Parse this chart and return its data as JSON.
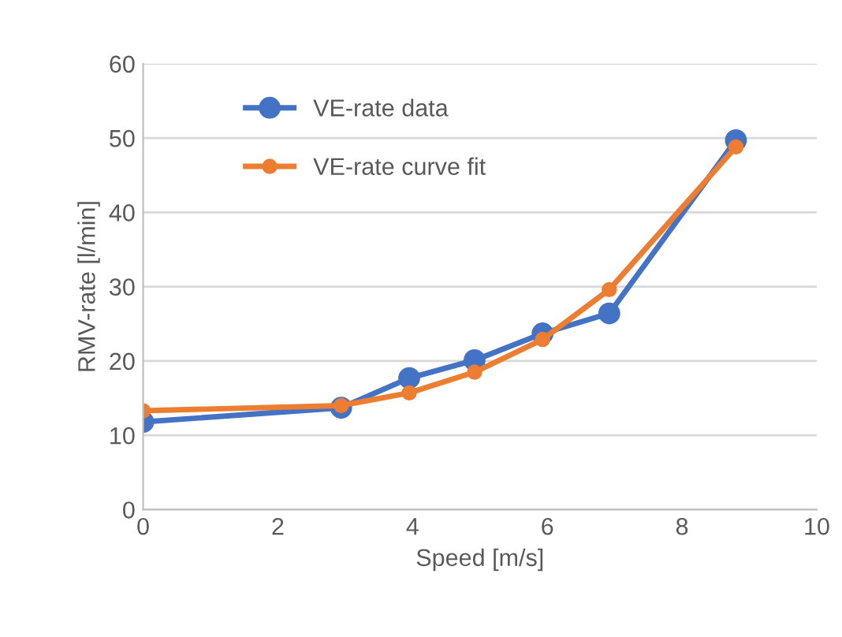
{
  "chart_data": {
    "type": "line",
    "xlabel": "Speed [m/s]",
    "ylabel": "RMV-rate [l/min]",
    "series": [
      {
        "name": "VE-rate data",
        "color": "#4472c4",
        "x": [
          0,
          2.94,
          3.95,
          4.92,
          5.93,
          6.92,
          8.8
        ],
        "values": [
          11.8,
          13.7,
          17.7,
          20.1,
          23.7,
          26.4,
          49.7
        ]
      },
      {
        "name": "VE-rate curve fit",
        "color": "#ed7d31",
        "x": [
          0,
          2.94,
          3.95,
          4.92,
          5.93,
          6.92,
          8.8
        ],
        "values": [
          13.3,
          14.0,
          15.7,
          18.5,
          22.9,
          29.6,
          48.8
        ]
      }
    ],
    "xlim": [
      0,
      10
    ],
    "xticks": [
      0,
      2,
      4,
      6,
      8,
      10
    ],
    "ylim": [
      0,
      60
    ],
    "yticks": [
      0,
      10,
      20,
      30,
      40,
      50,
      60
    ],
    "grid": "y",
    "legend": "top left",
    "marker": "circle",
    "line_style": "solid"
  }
}
